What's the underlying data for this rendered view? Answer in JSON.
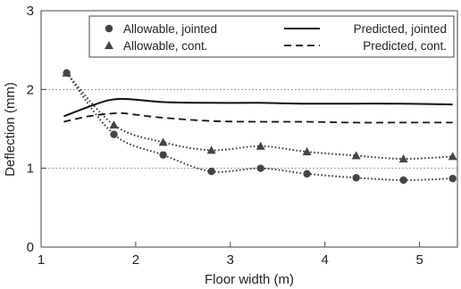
{
  "chart_data": {
    "type": "line",
    "xlabel": "Floor width (m)",
    "ylabel": "Deflection (mm)",
    "xlim": [
      1,
      5.4
    ],
    "ylim": [
      0,
      3
    ],
    "xticks": [
      "1",
      "2",
      "3",
      "4",
      "5"
    ],
    "yticks": [
      "0",
      "1",
      "2",
      "3"
    ],
    "grid": {
      "horizontal_dotted_at": [
        1,
        2
      ]
    },
    "legend_placement": "top-right",
    "series": [
      {
        "name": "Allowable, jointed",
        "style": "circle-markers-dotted-curve",
        "x": [
          1.27,
          1.77,
          2.29,
          2.8,
          3.32,
          3.81,
          4.33,
          4.83,
          5.35
        ],
        "y": [
          2.21,
          1.43,
          1.17,
          0.96,
          1.0,
          0.93,
          0.88,
          0.85,
          0.87
        ]
      },
      {
        "name": "Allowable, cont.",
        "style": "triangle-markers-dotted-curve",
        "x": [
          1.27,
          1.77,
          2.29,
          2.8,
          3.32,
          3.81,
          4.33,
          4.83,
          5.35
        ],
        "y": [
          2.21,
          1.55,
          1.33,
          1.23,
          1.28,
          1.21,
          1.16,
          1.12,
          1.15
        ]
      },
      {
        "name": "Predicted, jointed",
        "style": "solid-line",
        "x": [
          1.24,
          1.5,
          1.7,
          1.85,
          2.0,
          2.3,
          2.8,
          3.3,
          3.8,
          4.3,
          4.8,
          5.35
        ],
        "y": [
          1.66,
          1.78,
          1.86,
          1.88,
          1.87,
          1.84,
          1.83,
          1.83,
          1.82,
          1.82,
          1.82,
          1.81
        ]
      },
      {
        "name": "Predicted, cont.",
        "style": "dashed-line",
        "x": [
          1.24,
          1.5,
          1.7,
          1.85,
          2.0,
          2.3,
          2.8,
          3.3,
          3.8,
          4.3,
          4.8,
          5.35
        ],
        "y": [
          1.59,
          1.66,
          1.69,
          1.7,
          1.68,
          1.64,
          1.6,
          1.59,
          1.59,
          1.58,
          1.58,
          1.58
        ]
      }
    ]
  }
}
